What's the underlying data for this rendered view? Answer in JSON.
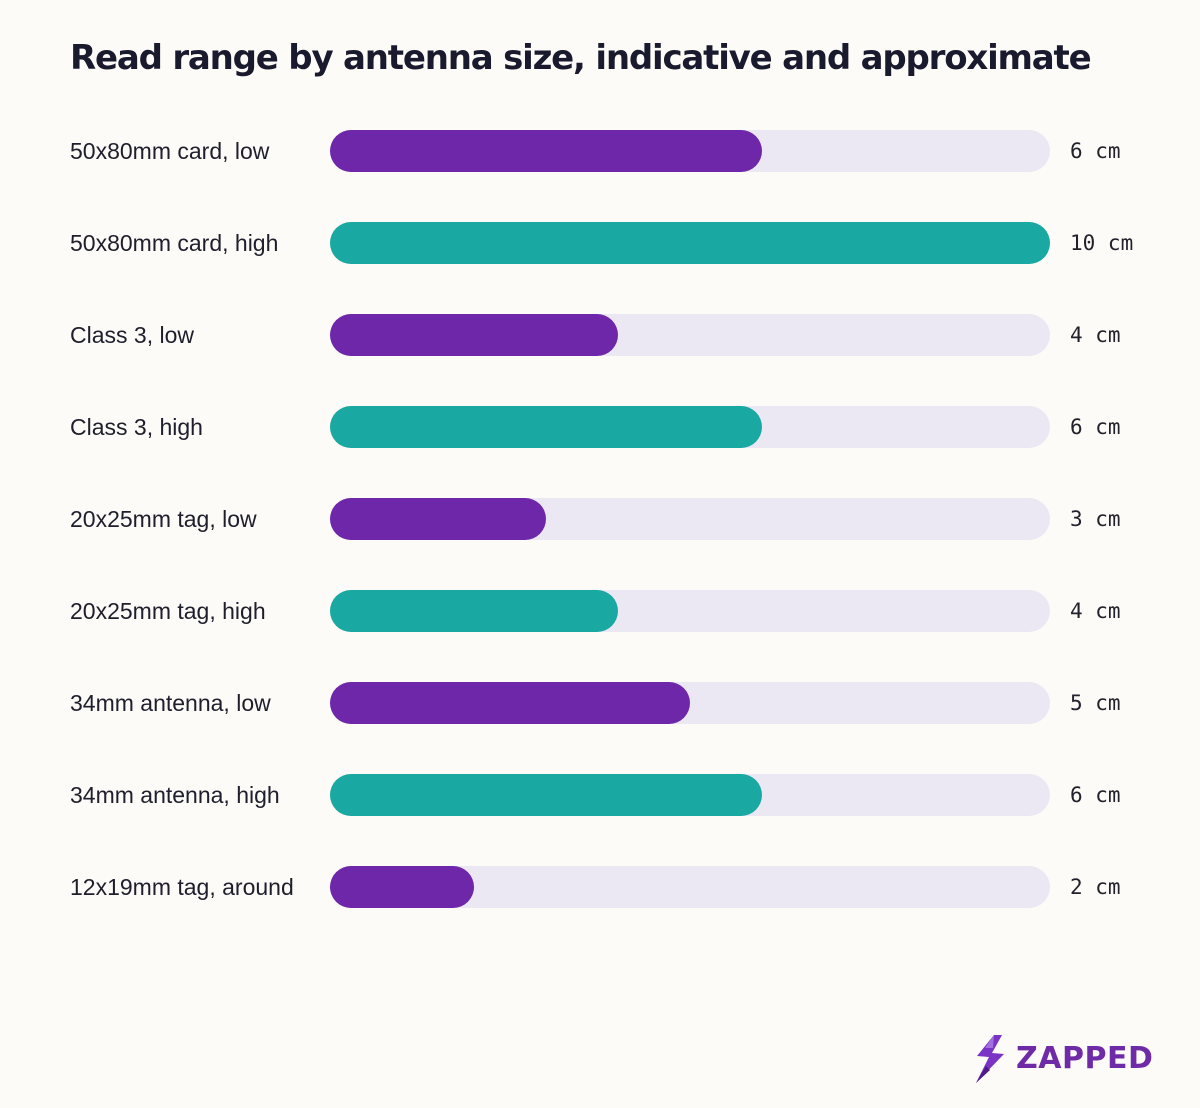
{
  "colors": {
    "low": "#6e27a8",
    "high": "#19a8a2",
    "track": "#ece8f3",
    "brand": "#6f2aa8"
  },
  "brand": {
    "name": "ZAPPED",
    "logo_icon": "lightning-bolt-icon"
  },
  "chart_data": {
    "type": "bar",
    "orientation": "horizontal",
    "title": "Read range by antenna size, indicative and approximate",
    "unit": "cm",
    "xlim": [
      0,
      10
    ],
    "grid": false,
    "legend": "none",
    "categories": [
      "50x80mm card, low",
      "50x80mm card, high",
      "Class 3, low",
      "Class 3, high",
      "20x25mm tag, low",
      "20x25mm tag, high",
      "34mm antenna, low",
      "34mm antenna, high",
      "12x19mm tag, around"
    ],
    "values": [
      6,
      10,
      4,
      6,
      3,
      4,
      5,
      6,
      2
    ],
    "value_labels": [
      "6 cm",
      "10 cm",
      "4 cm",
      "6 cm",
      "3 cm",
      "4 cm",
      "5 cm",
      "6 cm",
      "2 cm"
    ],
    "bar_colors": [
      "low",
      "high",
      "low",
      "high",
      "low",
      "high",
      "low",
      "high",
      "low"
    ]
  }
}
